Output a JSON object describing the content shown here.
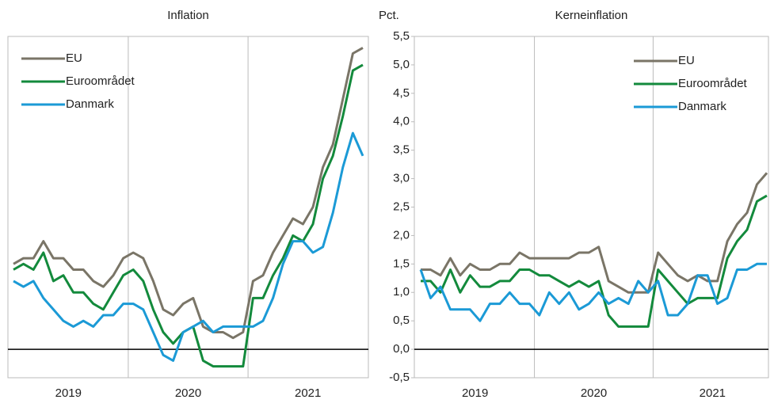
{
  "chart_data": [
    {
      "type": "line",
      "title": "Inflation",
      "x_labels": [
        "2019",
        "2020",
        "2021"
      ],
      "ylim": [
        -0.5,
        5.5
      ],
      "zero_line": true,
      "legend": "upper left",
      "series": [
        {
          "name": "EU",
          "color": "#7a7567",
          "values": [
            1.5,
            1.6,
            1.6,
            1.9,
            1.6,
            1.6,
            1.4,
            1.4,
            1.2,
            1.1,
            1.3,
            1.6,
            1.7,
            1.6,
            1.2,
            0.7,
            0.6,
            0.8,
            0.9,
            0.4,
            0.3,
            0.3,
            0.2,
            0.3,
            1.2,
            1.3,
            1.7,
            2.0,
            2.3,
            2.2,
            2.5,
            3.2,
            3.6,
            4.4,
            5.2,
            5.3
          ]
        },
        {
          "name": "Euroområdet",
          "color": "#138a3c",
          "values": [
            1.4,
            1.5,
            1.4,
            1.7,
            1.2,
            1.3,
            1.0,
            1.0,
            0.8,
            0.7,
            1.0,
            1.3,
            1.4,
            1.2,
            0.7,
            0.3,
            0.1,
            0.3,
            0.4,
            -0.2,
            -0.3,
            -0.3,
            -0.3,
            -0.3,
            0.9,
            0.9,
            1.3,
            1.6,
            2.0,
            1.9,
            2.2,
            3.0,
            3.4,
            4.1,
            4.9,
            5.0
          ]
        },
        {
          "name": "Danmark",
          "color": "#1b9ad6",
          "values": [
            1.2,
            1.1,
            1.2,
            0.9,
            0.7,
            0.5,
            0.4,
            0.5,
            0.4,
            0.6,
            0.6,
            0.8,
            0.8,
            0.7,
            0.3,
            -0.1,
            -0.2,
            0.3,
            0.4,
            0.5,
            0.3,
            0.4,
            0.4,
            0.4,
            0.4,
            0.5,
            0.9,
            1.5,
            1.9,
            1.9,
            1.7,
            1.8,
            2.4,
            3.2,
            3.8,
            3.4
          ]
        }
      ]
    },
    {
      "type": "line",
      "title": "Kerneinflation",
      "y_label": "Pct.",
      "x_labels": [
        "2019",
        "2020",
        "2021"
      ],
      "ylim": [
        -0.5,
        5.5
      ],
      "zero_line": true,
      "legend": "upper right",
      "yticks": [
        {
          "value": -0.5,
          "label": "-0,5"
        },
        {
          "value": 0,
          "label": "0,0"
        },
        {
          "value": 0.5,
          "label": "0,5"
        },
        {
          "value": 1,
          "label": "1,0"
        },
        {
          "value": 1.5,
          "label": "1,5"
        },
        {
          "value": 2,
          "label": "2,0"
        },
        {
          "value": 2.5,
          "label": "2,5"
        },
        {
          "value": 3,
          "label": "3,0"
        },
        {
          "value": 3.5,
          "label": "3,5"
        },
        {
          "value": 4,
          "label": "4,0"
        },
        {
          "value": 4.5,
          "label": "4,5"
        },
        {
          "value": 5,
          "label": "5,0"
        },
        {
          "value": 5.5,
          "label": "5,5"
        }
      ],
      "series": [
        {
          "name": "EU",
          "color": "#7a7567",
          "values": [
            1.4,
            1.4,
            1.3,
            1.6,
            1.3,
            1.5,
            1.4,
            1.4,
            1.5,
            1.5,
            1.7,
            1.6,
            1.6,
            1.6,
            1.6,
            1.6,
            1.7,
            1.7,
            1.8,
            1.2,
            1.1,
            1.0,
            1.0,
            1.0,
            1.7,
            1.5,
            1.3,
            1.2,
            1.3,
            1.2,
            1.2,
            1.9,
            2.2,
            2.4,
            2.9,
            3.1
          ]
        },
        {
          "name": "Euroområdet",
          "color": "#138a3c",
          "values": [
            1.2,
            1.2,
            1.0,
            1.4,
            1.0,
            1.3,
            1.1,
            1.1,
            1.2,
            1.2,
            1.4,
            1.4,
            1.3,
            1.3,
            1.2,
            1.1,
            1.2,
            1.1,
            1.2,
            0.6,
            0.4,
            0.4,
            0.4,
            0.4,
            1.4,
            1.2,
            1.0,
            0.8,
            0.9,
            0.9,
            0.9,
            1.6,
            1.9,
            2.1,
            2.6,
            2.7
          ]
        },
        {
          "name": "Danmark",
          "color": "#1b9ad6",
          "values": [
            1.4,
            0.9,
            1.1,
            0.7,
            0.7,
            0.7,
            0.5,
            0.8,
            0.8,
            1.0,
            0.8,
            0.8,
            0.6,
            1.0,
            0.8,
            1.0,
            0.7,
            0.8,
            1.0,
            0.8,
            0.9,
            0.8,
            1.2,
            1.0,
            1.2,
            0.6,
            0.6,
            0.8,
            1.3,
            1.3,
            0.8,
            0.9,
            1.4,
            1.4,
            1.5,
            1.5
          ]
        }
      ]
    }
  ]
}
